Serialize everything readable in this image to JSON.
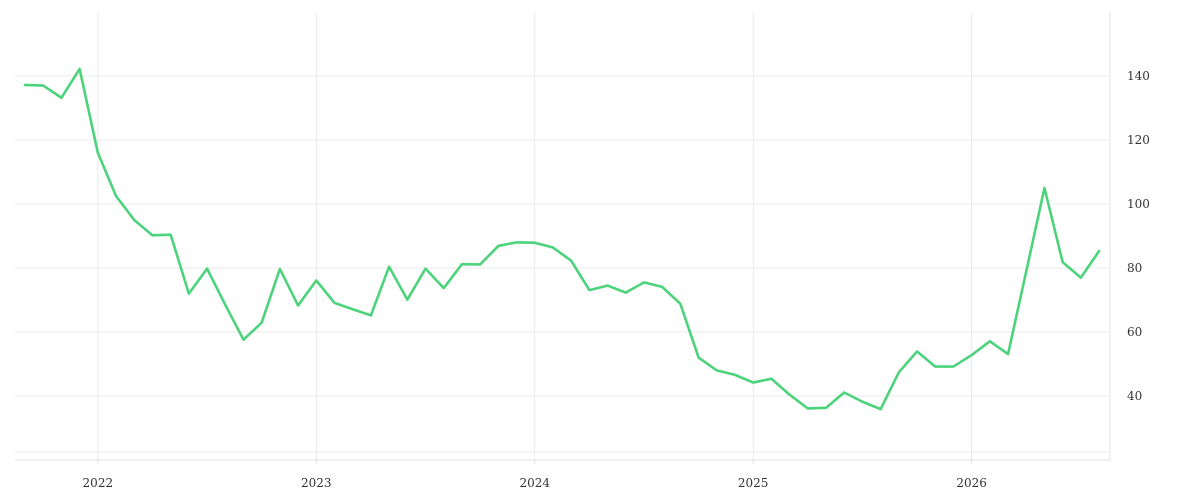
{
  "chart_data": {
    "type": "line",
    "title": "",
    "xlabel": "",
    "ylabel": "",
    "x_ticks": [
      "2022",
      "2023",
      "2024",
      "2025",
      "2026"
    ],
    "y_ticks": [
      40,
      60,
      80,
      100,
      120,
      140
    ],
    "xlim": [
      "2021-09",
      "2026-08"
    ],
    "ylim": [
      20,
      160
    ],
    "grid": true,
    "legend": "none",
    "series": [
      {
        "color": "#4cd37b",
        "x": [
          "2021-09",
          "2021-10",
          "2021-11",
          "2021-12",
          "2022-01",
          "2022-02",
          "2022-03",
          "2022-04",
          "2022-05",
          "2022-06",
          "2022-07",
          "2022-08",
          "2022-09",
          "2022-10",
          "2022-11",
          "2022-12",
          "2023-01",
          "2023-02",
          "2023-03",
          "2023-04",
          "2023-05",
          "2023-06",
          "2023-07",
          "2023-08",
          "2023-09",
          "2023-10",
          "2023-11",
          "2023-12",
          "2024-01",
          "2024-02",
          "2024-03",
          "2024-04",
          "2024-05",
          "2024-06",
          "2024-07",
          "2024-08",
          "2024-09",
          "2024-10",
          "2024-11",
          "2024-12",
          "2025-01",
          "2025-02",
          "2025-03",
          "2025-04",
          "2025-05",
          "2025-06",
          "2025-07",
          "2025-08",
          "2025-09",
          "2025-10",
          "2025-11",
          "2025-12",
          "2026-01",
          "2026-02",
          "2026-03",
          "2026-04",
          "2026-05",
          "2026-06",
          "2026-07",
          "2026-08"
        ],
        "values": [
          137.2,
          137.0,
          133.2,
          142.2,
          116.0,
          102.5,
          95.0,
          90.2,
          90.4,
          72.0,
          79.8,
          68.5,
          57.6,
          62.9,
          79.7,
          68.3,
          76.1,
          69.1,
          67.1,
          65.2,
          80.4,
          70.1,
          79.8,
          73.7,
          81.2,
          81.1,
          86.9,
          88.0,
          87.9,
          86.4,
          82.3,
          73.1,
          74.5,
          72.3,
          75.5,
          74.1,
          68.8,
          52.0,
          48.0,
          46.6,
          44.2,
          45.4,
          40.4,
          36.1,
          36.3,
          41.1,
          38.2,
          35.9,
          47.4,
          53.9,
          49.2,
          49.2,
          52.8,
          57.1,
          53.1,
          79.0,
          105.0,
          81.8,
          77.0,
          85.3
        ]
      }
    ]
  }
}
